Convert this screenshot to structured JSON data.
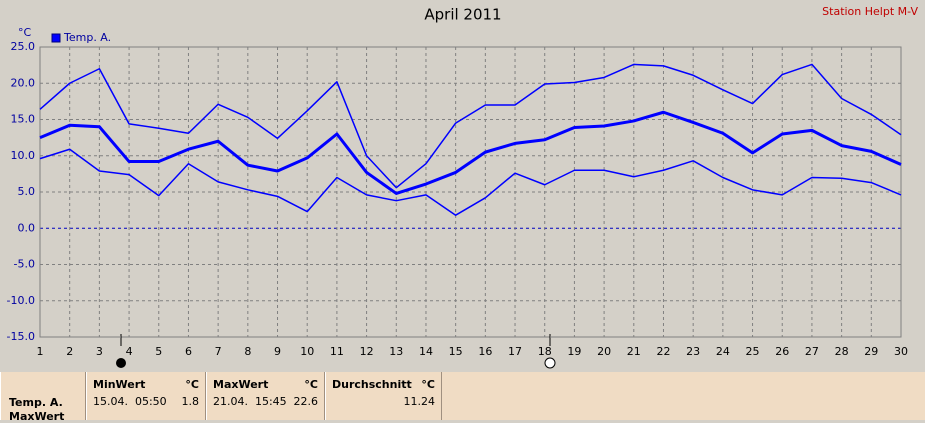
{
  "chart_data": {
    "type": "line",
    "title": "April 2011",
    "station": "Station Helpt M-V",
    "y_unit": "°C",
    "legend_label": "Temp. A.",
    "x": [
      1,
      2,
      3,
      4,
      5,
      6,
      7,
      8,
      9,
      10,
      11,
      12,
      13,
      14,
      15,
      16,
      17,
      18,
      19,
      20,
      21,
      22,
      23,
      24,
      25,
      26,
      27,
      28,
      29,
      30
    ],
    "xlim": [
      1,
      30
    ],
    "xticks": [
      1,
      2,
      3,
      4,
      5,
      6,
      7,
      8,
      9,
      10,
      11,
      12,
      13,
      14,
      15,
      16,
      17,
      18,
      19,
      20,
      21,
      22,
      23,
      24,
      25,
      26,
      27,
      28,
      29,
      30
    ],
    "ylim": [
      -15,
      25
    ],
    "yticks": [
      {
        "value": -15,
        "label": "-15.0"
      },
      {
        "value": -10,
        "label": "-10.0"
      },
      {
        "value": -5,
        "label": "-5.0"
      },
      {
        "value": 0,
        "label": "0.0"
      },
      {
        "value": 5,
        "label": "5.0"
      },
      {
        "value": 10,
        "label": "10.0"
      },
      {
        "value": 15,
        "label": "15.0"
      },
      {
        "value": 20,
        "label": "20.0"
      },
      {
        "value": 25,
        "label": "25.0"
      }
    ],
    "grid": true,
    "series": [
      {
        "color": "#0000ff",
        "width": 1.5,
        "values": [
          16.4,
          20.0,
          22.0,
          14.4,
          13.8,
          13.1,
          17.1,
          15.3,
          12.4,
          16.2,
          20.2,
          10.0,
          5.6,
          8.9,
          14.5,
          17.0,
          17.0,
          19.9,
          20.1,
          20.8,
          22.6,
          22.4,
          21.1,
          19.1,
          17.2,
          21.2,
          22.6,
          17.9,
          15.7,
          12.9
        ]
      },
      {
        "color": "#0000ff",
        "width": 3,
        "values": [
          12.5,
          14.2,
          14.0,
          9.2,
          9.2,
          10.9,
          12.0,
          8.7,
          7.9,
          9.7,
          13.0,
          7.7,
          4.8,
          6.1,
          7.7,
          10.5,
          11.7,
          12.2,
          13.9,
          14.1,
          14.8,
          16.0,
          14.6,
          13.1,
          10.4,
          13.0,
          13.5,
          11.4,
          10.6,
          8.8
        ]
      },
      {
        "color": "#0000ff",
        "width": 1.5,
        "values": [
          9.6,
          10.9,
          7.9,
          7.4,
          4.5,
          8.9,
          6.4,
          5.3,
          4.4,
          2.3,
          7.0,
          4.6,
          3.8,
          4.6,
          1.8,
          4.2,
          7.6,
          6.0,
          8.0,
          8.0,
          7.1,
          8.0,
          9.3,
          7.0,
          5.3,
          4.6,
          7.0,
          6.9,
          6.3,
          4.6
        ]
      }
    ]
  },
  "table": {
    "row_labels": [
      "Temp. A.",
      "MaxWert"
    ],
    "columns": [
      {
        "header": "MinWert",
        "unit": "°C",
        "time": "15.04.  05:50",
        "value": 1.8
      },
      {
        "header": "MaxWert",
        "unit": "°C",
        "time": "21.04.  15:45",
        "value": 22.6
      },
      {
        "header": "Durchschnitt",
        "unit": "°C",
        "time": "",
        "value": 11.24
      }
    ]
  }
}
